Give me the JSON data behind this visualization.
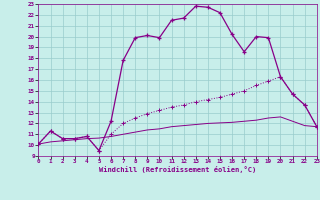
{
  "bg_color": "#c8eeea",
  "line_color": "#880088",
  "grid_color": "#99cccc",
  "xlabel": "Windchill (Refroidissement éolien,°C)",
  "xlim": [
    0,
    23
  ],
  "ylim": [
    9,
    23
  ],
  "xticks": [
    0,
    1,
    2,
    3,
    4,
    5,
    6,
    7,
    8,
    9,
    10,
    11,
    12,
    13,
    14,
    15,
    16,
    17,
    18,
    19,
    20,
    21,
    22,
    23
  ],
  "yticks": [
    9,
    10,
    11,
    12,
    13,
    14,
    15,
    16,
    17,
    18,
    19,
    20,
    21,
    22,
    23
  ],
  "line1_x": [
    0,
    1,
    2,
    3,
    4,
    5,
    6,
    7,
    8,
    9,
    10,
    11,
    12,
    13,
    14,
    15,
    16,
    17,
    18,
    19,
    20,
    21,
    22,
    23
  ],
  "line1_y": [
    10.1,
    11.3,
    10.6,
    10.6,
    10.8,
    9.5,
    12.2,
    17.8,
    19.9,
    20.1,
    19.9,
    21.5,
    21.7,
    22.8,
    22.7,
    22.2,
    20.2,
    18.6,
    20.0,
    19.9,
    16.3,
    14.7,
    13.7,
    11.7
  ],
  "line2_x": [
    0,
    1,
    2,
    3,
    4,
    5,
    6,
    7,
    8,
    9,
    10,
    11,
    12,
    13,
    14,
    15,
    16,
    17,
    18,
    19,
    20,
    21,
    22,
    23
  ],
  "line2_y": [
    10.1,
    11.3,
    10.6,
    10.6,
    10.8,
    9.5,
    11.0,
    12.0,
    12.5,
    12.9,
    13.2,
    13.5,
    13.7,
    14.0,
    14.2,
    14.4,
    14.7,
    15.0,
    15.5,
    15.9,
    16.3,
    14.7,
    13.7,
    11.7
  ],
  "line3_x": [
    0,
    1,
    2,
    3,
    4,
    5,
    6,
    7,
    8,
    9,
    10,
    11,
    12,
    13,
    14,
    15,
    16,
    17,
    18,
    19,
    20,
    21,
    22,
    23
  ],
  "line3_y": [
    10.1,
    10.3,
    10.4,
    10.5,
    10.6,
    10.65,
    10.8,
    11.0,
    11.2,
    11.4,
    11.5,
    11.7,
    11.8,
    11.9,
    12.0,
    12.05,
    12.1,
    12.2,
    12.3,
    12.5,
    12.6,
    12.2,
    11.8,
    11.7
  ]
}
